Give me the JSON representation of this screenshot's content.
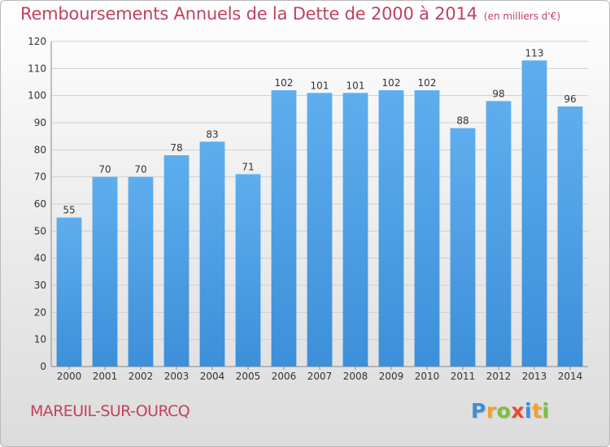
{
  "header": {
    "title": "Remboursements Annuels de la Dette de 2000 à 2014",
    "subtitle": "(en milliers d'€)"
  },
  "footer": {
    "city": "MAREUIL-SUR-OURCQ",
    "logo_letters": [
      {
        "ch": "P",
        "color": "#3a8fd6"
      },
      {
        "ch": "r",
        "color": "#f1a02e"
      },
      {
        "ch": "o",
        "color": "#7cbf3c"
      },
      {
        "ch": "x",
        "color": "#e64a2e"
      },
      {
        "ch": "i",
        "color": "#3a8fd6"
      },
      {
        "ch": "t",
        "color": "#f1a02e"
      },
      {
        "ch": "i",
        "color": "#7cbf3c"
      }
    ]
  },
  "chart_data": {
    "type": "bar",
    "title": "Remboursements Annuels de la Dette de 2000 à 2014",
    "xlabel": "",
    "ylabel": "",
    "categories": [
      "2000",
      "2001",
      "2002",
      "2003",
      "2004",
      "2005",
      "2006",
      "2007",
      "2008",
      "2009",
      "2010",
      "2011",
      "2012",
      "2013",
      "2014"
    ],
    "values": [
      55,
      70,
      70,
      78,
      83,
      71,
      102,
      101,
      101,
      102,
      102,
      88,
      98,
      113,
      96
    ],
    "ylim": [
      0,
      120
    ],
    "yticks": [
      0,
      10,
      20,
      30,
      40,
      50,
      60,
      70,
      80,
      90,
      100,
      110,
      120
    ],
    "grid": true,
    "bar_color": "#3d8fd9",
    "bar_color_light": "#5eaeee",
    "text_color": "#c2415f"
  }
}
